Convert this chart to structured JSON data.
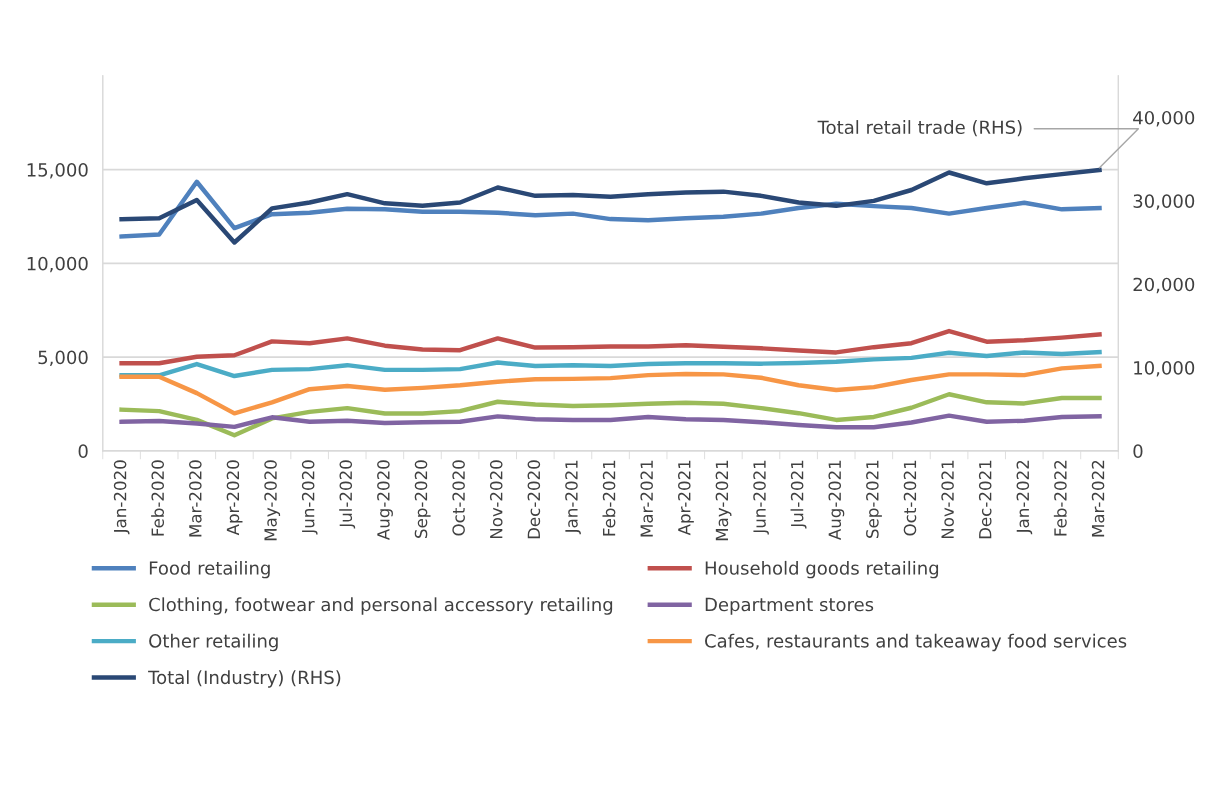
{
  "chart_data": {
    "type": "line",
    "categories": [
      "Jan-2020",
      "Feb-2020",
      "Mar-2020",
      "Apr-2020",
      "May-2020",
      "Jun-2020",
      "Jul-2020",
      "Aug-2020",
      "Sep-2020",
      "Oct-2020",
      "Nov-2020",
      "Dec-2020",
      "Jan-2021",
      "Feb-2021",
      "Mar-2021",
      "Apr-2021",
      "May-2021",
      "Jun-2021",
      "Jul-2021",
      "Aug-2021",
      "Sep-2021",
      "Oct-2021",
      "Nov-2021",
      "Dec-2021",
      "Jan-2022",
      "Feb-2022",
      "Mar-2022"
    ],
    "series": [
      {
        "name": "Food retailing",
        "color": "#4f81bd",
        "values": [
          11430,
          11540,
          14350,
          11880,
          12620,
          12700,
          12910,
          12880,
          12750,
          12750,
          12700,
          12560,
          12650,
          12360,
          12300,
          12400,
          12480,
          12650,
          12950,
          13180,
          13050,
          12950,
          12650,
          12950,
          13230,
          12880,
          12950
        ]
      },
      {
        "name": "Household goods retailing",
        "color": "#c0504d",
        "values": [
          4670,
          4670,
          5020,
          5100,
          5840,
          5740,
          6000,
          5610,
          5410,
          5370,
          6000,
          5510,
          5530,
          5570,
          5570,
          5630,
          5550,
          5470,
          5350,
          5250,
          5530,
          5740,
          6390,
          5820,
          5900,
          6040,
          6210
        ]
      },
      {
        "name": "Clothing, footwear and personal accessory retailing",
        "color": "#9bbb59",
        "values": [
          2200,
          2120,
          1650,
          830,
          1730,
          2080,
          2280,
          1990,
          1990,
          2120,
          2620,
          2470,
          2390,
          2430,
          2510,
          2570,
          2510,
          2280,
          2010,
          1650,
          1810,
          2300,
          3020,
          2590,
          2530,
          2820,
          2820
        ]
      },
      {
        "name": "Department stores",
        "color": "#8064a2",
        "values": [
          1550,
          1590,
          1460,
          1280,
          1790,
          1550,
          1610,
          1490,
          1530,
          1550,
          1840,
          1690,
          1650,
          1650,
          1810,
          1690,
          1650,
          1530,
          1380,
          1260,
          1260,
          1510,
          1880,
          1550,
          1610,
          1810,
          1840
        ]
      },
      {
        "name": "Other retailing",
        "color": "#4bacc6",
        "values": [
          4030,
          4030,
          4630,
          3990,
          4320,
          4360,
          4570,
          4320,
          4320,
          4360,
          4710,
          4530,
          4570,
          4530,
          4630,
          4670,
          4670,
          4650,
          4690,
          4750,
          4880,
          4960,
          5230,
          5060,
          5250,
          5170,
          5270
        ]
      },
      {
        "name": "Cafes, restaurants and takeaway food services",
        "color": "#f79646",
        "values": [
          3950,
          3950,
          3080,
          2000,
          2590,
          3290,
          3460,
          3260,
          3360,
          3500,
          3690,
          3820,
          3840,
          3880,
          4040,
          4100,
          4080,
          3900,
          3500,
          3250,
          3400,
          3780,
          4080,
          4080,
          4040,
          4400,
          4530
        ]
      },
      {
        "name": "Total (Industry) (RHS)",
        "color": "#2a4875",
        "axis": "y2",
        "values": [
          27800,
          27900,
          30100,
          25000,
          29100,
          29800,
          30800,
          29700,
          29400,
          29800,
          31600,
          30600,
          30700,
          30500,
          30800,
          31000,
          31100,
          30600,
          29800,
          29400,
          30000,
          31300,
          33400,
          32100,
          32700,
          33200,
          33700
        ]
      }
    ],
    "ylim": [
      0,
      20000
    ],
    "yticks": [
      {
        "value": 0,
        "label": "0"
      },
      {
        "value": 5000,
        "label": "5,000"
      },
      {
        "value": 10000,
        "label": "10,000"
      },
      {
        "value": 15000,
        "label": "15,000"
      }
    ],
    "y2lim": [
      0,
      45000
    ],
    "y2ticks": [
      {
        "value": 0,
        "label": "0"
      },
      {
        "value": 10000,
        "label": "10,000"
      },
      {
        "value": 20000,
        "label": "20,000"
      },
      {
        "value": 30000,
        "label": "30,000"
      },
      {
        "value": 40000,
        "label": "40,000"
      }
    ],
    "annotations": [
      {
        "text": "Total retail trade (RHS)",
        "x": "Mar-2022",
        "y": 15100
      }
    ],
    "grid": "y",
    "legend": "bottom",
    "marker": "none",
    "line_style": "solid"
  }
}
